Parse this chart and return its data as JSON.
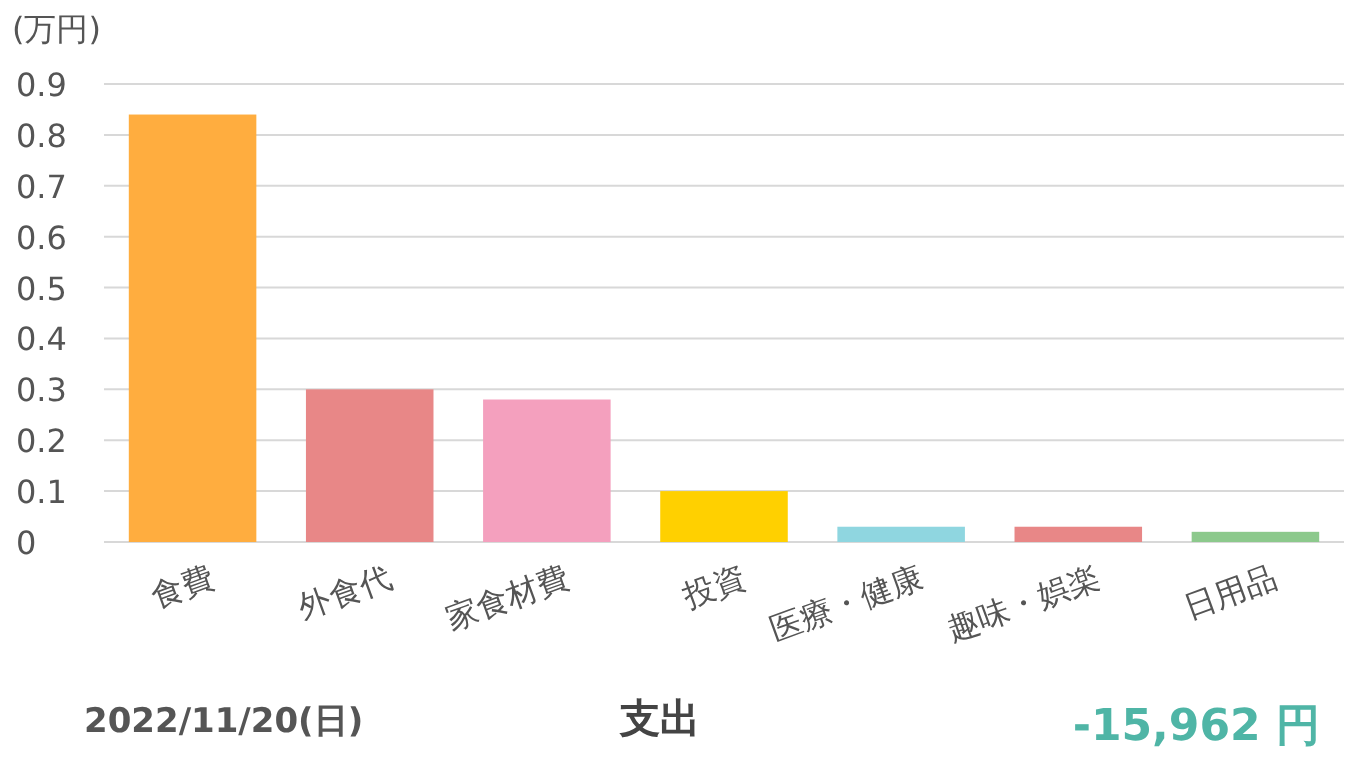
{
  "chart_data": {
    "type": "bar",
    "ylabel": "(万円)",
    "categories": [
      "食費",
      "外食代",
      "家食材費",
      "投資",
      "医療・健康",
      "趣味・娯楽",
      "日用品"
    ],
    "values": [
      0.84,
      0.3,
      0.28,
      0.1,
      0.03,
      0.03,
      0.02
    ],
    "colors": [
      "#ffad3f",
      "#e88787",
      "#f4a0be",
      "#ffd000",
      "#8fd6e0",
      "#e88787",
      "#8cc98c"
    ],
    "ylim": [
      0,
      0.9
    ],
    "yticks": [
      0,
      0.1,
      0.2,
      0.3,
      0.4,
      0.5,
      0.6,
      0.7,
      0.8,
      0.9
    ],
    "grid": "y",
    "annotations": [
      "2022/11/20(日)",
      "支出",
      "-15,962 円"
    ]
  }
}
